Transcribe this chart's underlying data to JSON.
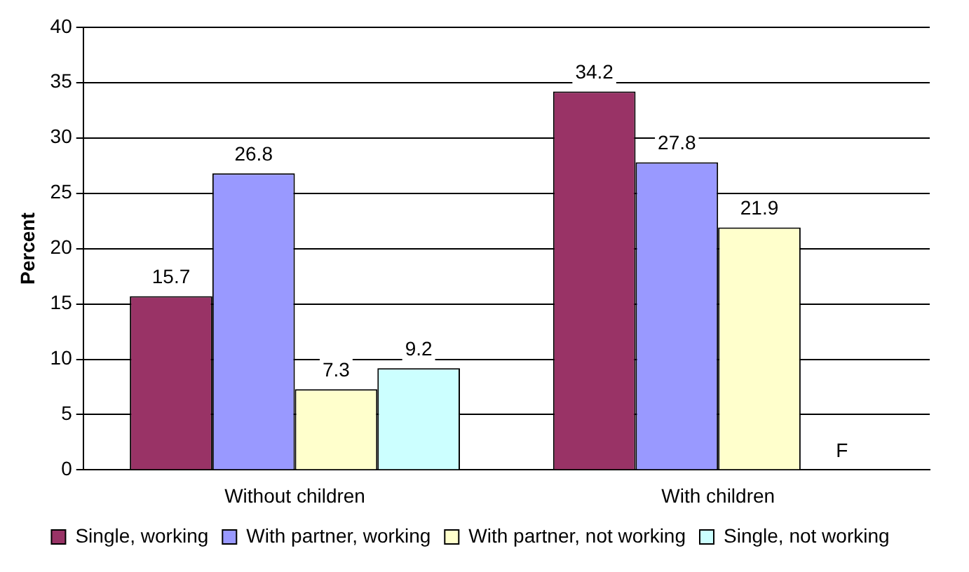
{
  "chart_data": {
    "type": "bar",
    "ylabel": "Percent",
    "categories": [
      "Without children",
      "With children"
    ],
    "series": [
      {
        "name": "Single, working",
        "color": "#993366",
        "values": [
          15.7,
          34.2
        ],
        "value_labels": [
          "15.7",
          "34.2"
        ]
      },
      {
        "name": "With partner, working",
        "color": "#9999ff",
        "values": [
          26.8,
          27.8
        ],
        "value_labels": [
          "26.8",
          "27.8"
        ]
      },
      {
        "name": "With partner, not working",
        "color": "#ffffcc",
        "values": [
          7.3,
          21.9
        ],
        "value_labels": [
          "7.3",
          "21.9"
        ]
      },
      {
        "name": "Single, not working",
        "color": "#ccffff",
        "values": [
          9.2,
          null
        ],
        "value_labels": [
          "9.2",
          "F"
        ]
      }
    ],
    "ylim": [
      0,
      40
    ],
    "yticks": [
      0,
      5,
      10,
      15,
      20,
      25,
      30,
      35,
      40
    ],
    "grid": "y",
    "legend": "bottom"
  }
}
